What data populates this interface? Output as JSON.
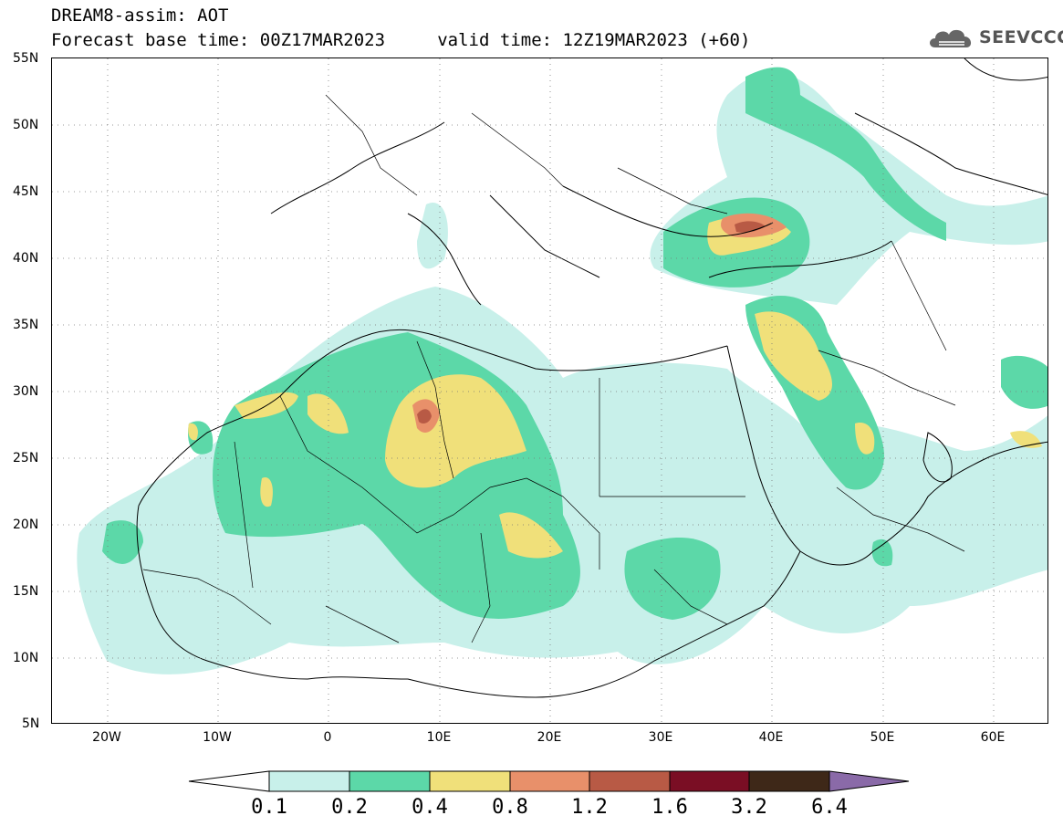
{
  "title": {
    "line1": "DREAM8-assim: AOT",
    "line2": "Forecast base time: 00Z17MAR2023     valid time: 12Z19MAR2023 (+60)"
  },
  "logo": {
    "text": "SEEVCCC",
    "icon": "cloud-icon"
  },
  "map": {
    "lon_range": [
      -25,
      65
    ],
    "lat_range": [
      5,
      55
    ],
    "lat_labels": [
      "55N",
      "50N",
      "45N",
      "40N",
      "35N",
      "30N",
      "25N",
      "20N",
      "15N",
      "10N",
      "5N"
    ],
    "lon_labels": [
      "20W",
      "10W",
      "0",
      "10E",
      "20E",
      "30E",
      "40E",
      "50E",
      "60E"
    ],
    "grid": "dotted",
    "colors": {
      "c01": "#c8f0ea",
      "c02": "#5cd8a8",
      "c04": "#f0e07a",
      "c08": "#e8906a",
      "c12": "#b85a45",
      "c16": "#7a0e24",
      "c32": "#3e2818",
      "c64": "#8a6aa8"
    }
  },
  "colorbar": {
    "labels": [
      "0.1",
      "0.2",
      "0.4",
      "0.8",
      "1.2",
      "1.6",
      "3.2",
      "6.4"
    ],
    "colors": [
      "#c8f0ea",
      "#5cd8a8",
      "#f0e07a",
      "#e8906a",
      "#b85a45",
      "#7a0e24",
      "#3e2818"
    ],
    "over_color": "#8a6aa8",
    "under_color": "#ffffff"
  }
}
